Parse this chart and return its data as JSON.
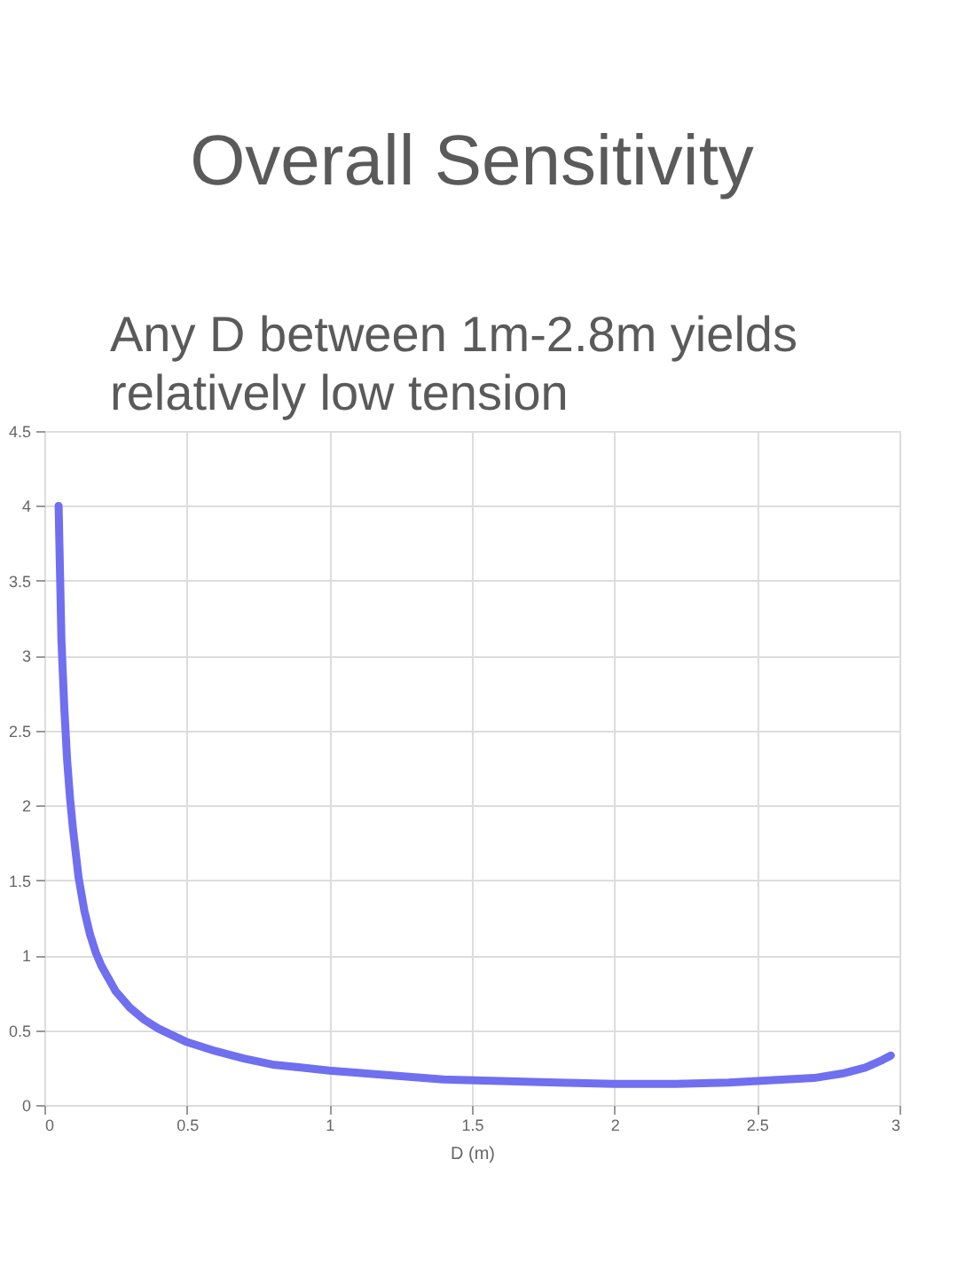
{
  "chart_data": {
    "type": "line",
    "title": "Overall Sensitivity",
    "subtitle": "Any D between 1m-2.8m yields relatively low tension",
    "xlabel": "D (m)",
    "x": [
      0.05,
      0.06,
      0.07,
      0.08,
      0.09,
      0.1,
      0.12,
      0.14,
      0.16,
      0.18,
      0.2,
      0.25,
      0.3,
      0.35,
      0.4,
      0.5,
      0.6,
      0.7,
      0.8,
      0.9,
      1.0,
      1.2,
      1.4,
      1.6,
      1.8,
      2.0,
      2.2,
      2.4,
      2.6,
      2.7,
      2.8,
      2.88,
      2.94,
      2.97
    ],
    "series": [
      {
        "color": "#6f6ff0",
        "values": [
          4.0,
          3.1,
          2.65,
          2.3,
          2.05,
          1.85,
          1.52,
          1.3,
          1.14,
          1.02,
          0.93,
          0.76,
          0.65,
          0.57,
          0.51,
          0.42,
          0.36,
          0.31,
          0.27,
          0.25,
          0.23,
          0.2,
          0.17,
          0.16,
          0.15,
          0.14,
          0.14,
          0.15,
          0.17,
          0.18,
          0.21,
          0.25,
          0.3,
          0.33
        ]
      }
    ],
    "xlim": [
      0,
      3
    ],
    "ylim": [
      0,
      4.5
    ],
    "xticks": [
      0,
      0.5,
      1,
      1.5,
      2,
      2.5,
      3
    ],
    "yticks": [
      0,
      0.5,
      1,
      1.5,
      2,
      2.5,
      3,
      3.5,
      4,
      4.5
    ],
    "grid": true,
    "line_style": "solid"
  }
}
